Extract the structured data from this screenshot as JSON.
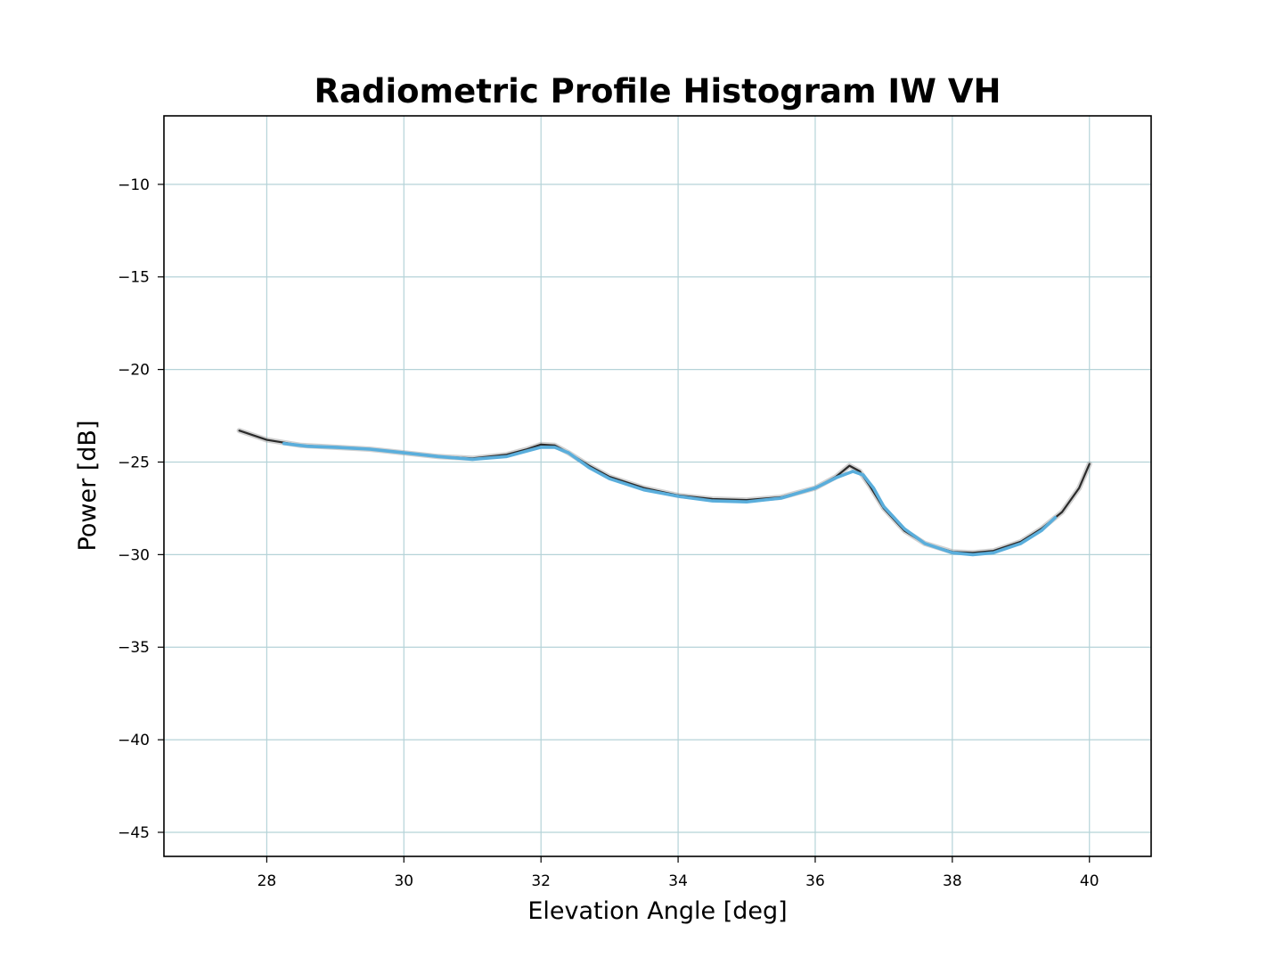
{
  "chart_data": {
    "type": "line",
    "title": "Radiometric Profile Histogram IW VH",
    "xlabel": "Elevation Angle [deg]",
    "ylabel": "Power [dB]",
    "xlim": [
      26.5,
      40.9
    ],
    "ylim": [
      -46.3,
      -6.3
    ],
    "x_ticks": [
      28,
      30,
      32,
      34,
      36,
      38,
      40
    ],
    "y_ticks": [
      -10,
      -15,
      -20,
      -25,
      -30,
      -35,
      -40,
      -45
    ],
    "x_tick_labels": [
      "28",
      "30",
      "32",
      "34",
      "36",
      "38",
      "40"
    ],
    "y_tick_labels": [
      "−10",
      "−15",
      "−20",
      "−25",
      "−30",
      "−35",
      "−40",
      "−45"
    ],
    "grid": true,
    "grid_color": "#b5d3d8",
    "series": [
      {
        "role": "histogram-density",
        "color": "#2b2b2b",
        "points": [
          [
            27.6,
            -23.3
          ],
          [
            28.0,
            -23.8
          ],
          [
            28.5,
            -24.1
          ],
          [
            29.0,
            -24.2
          ],
          [
            29.5,
            -24.3
          ],
          [
            30.0,
            -24.5
          ],
          [
            30.5,
            -24.7
          ],
          [
            31.0,
            -24.8
          ],
          [
            31.5,
            -24.6
          ],
          [
            31.8,
            -24.3
          ],
          [
            32.0,
            -24.05
          ],
          [
            32.2,
            -24.1
          ],
          [
            32.4,
            -24.5
          ],
          [
            32.7,
            -25.2
          ],
          [
            33.0,
            -25.8
          ],
          [
            33.5,
            -26.4
          ],
          [
            34.0,
            -26.8
          ],
          [
            34.5,
            -27.0
          ],
          [
            35.0,
            -27.05
          ],
          [
            35.5,
            -26.9
          ],
          [
            36.0,
            -26.4
          ],
          [
            36.3,
            -25.8
          ],
          [
            36.5,
            -25.2
          ],
          [
            36.65,
            -25.5
          ],
          [
            36.8,
            -26.3
          ],
          [
            37.0,
            -27.5
          ],
          [
            37.3,
            -28.7
          ],
          [
            37.6,
            -29.4
          ],
          [
            38.0,
            -29.85
          ],
          [
            38.3,
            -29.9
          ],
          [
            38.6,
            -29.8
          ],
          [
            39.0,
            -29.3
          ],
          [
            39.3,
            -28.6
          ],
          [
            39.6,
            -27.7
          ],
          [
            39.85,
            -26.4
          ],
          [
            40.0,
            -25.1
          ]
        ]
      },
      {
        "role": "fitted-profile",
        "color": "#5aaedc",
        "points": [
          [
            28.25,
            -24.0
          ],
          [
            28.6,
            -24.15
          ],
          [
            29.0,
            -24.2
          ],
          [
            29.5,
            -24.3
          ],
          [
            30.0,
            -24.5
          ],
          [
            30.5,
            -24.7
          ],
          [
            31.0,
            -24.85
          ],
          [
            31.5,
            -24.7
          ],
          [
            31.8,
            -24.4
          ],
          [
            32.0,
            -24.2
          ],
          [
            32.2,
            -24.2
          ],
          [
            32.4,
            -24.5
          ],
          [
            32.7,
            -25.3
          ],
          [
            33.0,
            -25.9
          ],
          [
            33.5,
            -26.5
          ],
          [
            34.0,
            -26.85
          ],
          [
            34.5,
            -27.1
          ],
          [
            35.0,
            -27.15
          ],
          [
            35.5,
            -26.95
          ],
          [
            36.0,
            -26.4
          ],
          [
            36.3,
            -25.85
          ],
          [
            36.55,
            -25.5
          ],
          [
            36.7,
            -25.7
          ],
          [
            36.85,
            -26.4
          ],
          [
            37.0,
            -27.4
          ],
          [
            37.3,
            -28.6
          ],
          [
            37.6,
            -29.4
          ],
          [
            38.0,
            -29.9
          ],
          [
            38.3,
            -30.0
          ],
          [
            38.6,
            -29.9
          ],
          [
            39.0,
            -29.4
          ],
          [
            39.3,
            -28.7
          ],
          [
            39.5,
            -28.0
          ]
        ]
      }
    ]
  }
}
